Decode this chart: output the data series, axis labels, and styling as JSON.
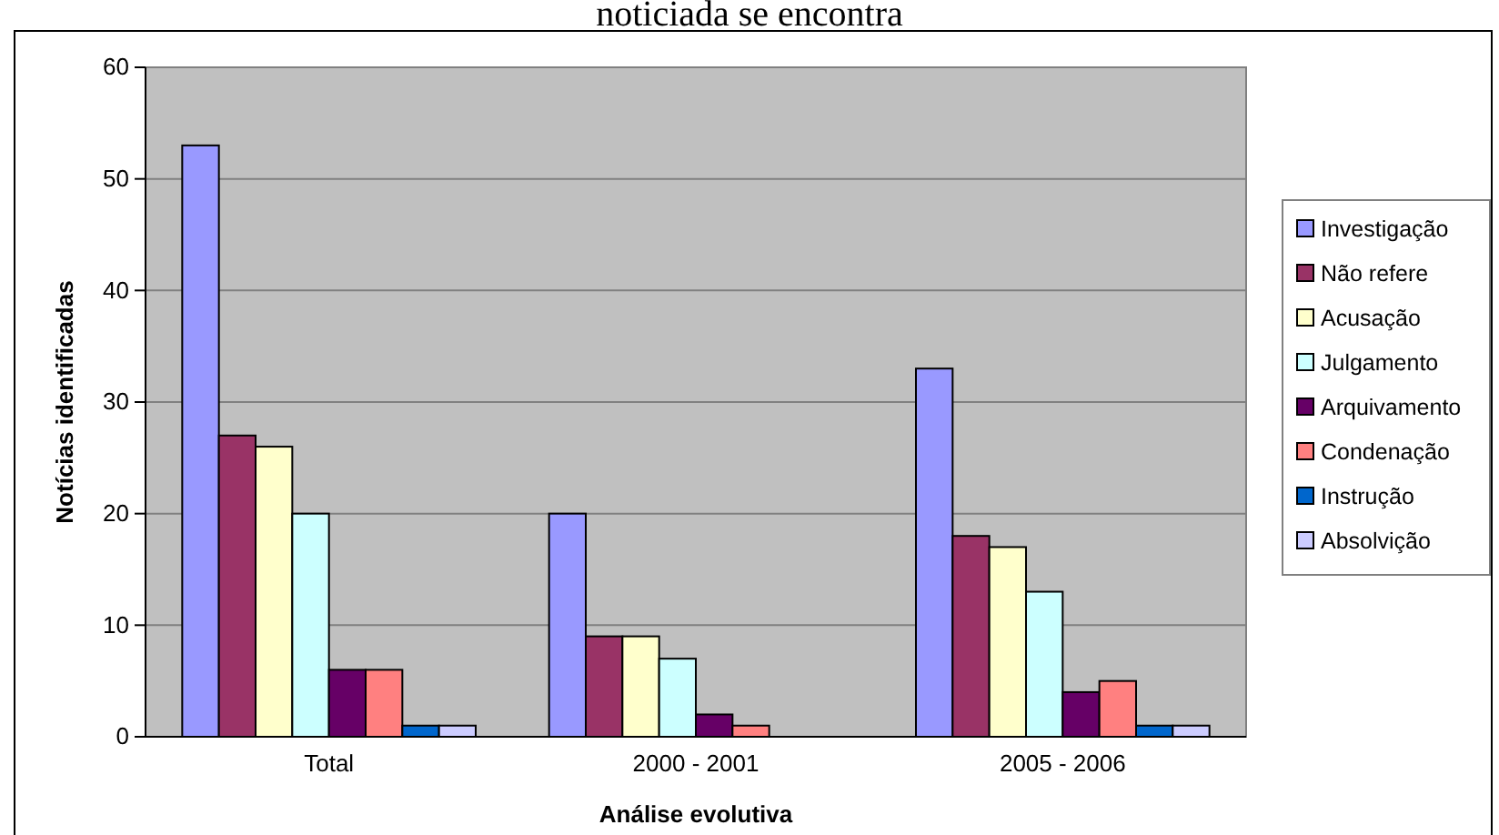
{
  "chart_data": {
    "type": "bar",
    "title": "noticiada se encontra",
    "xlabel": "Análise evolutiva",
    "ylabel": "Notícias identificadas",
    "categories": [
      "Total",
      "2000 - 2001",
      "2005 - 2006"
    ],
    "series": [
      {
        "name": "Investigação",
        "color": "#9999ff",
        "values": [
          53,
          20,
          33
        ]
      },
      {
        "name": "Não refere",
        "color": "#993366",
        "values": [
          27,
          9,
          18
        ]
      },
      {
        "name": "Acusação",
        "color": "#ffffcc",
        "values": [
          26,
          9,
          17
        ]
      },
      {
        "name": "Julgamento",
        "color": "#ccffff",
        "values": [
          20,
          7,
          13
        ]
      },
      {
        "name": "Arquivamento",
        "color": "#660066",
        "values": [
          6,
          2,
          4
        ]
      },
      {
        "name": "Condenação",
        "color": "#ff8080",
        "values": [
          6,
          1,
          5
        ]
      },
      {
        "name": "Instrução",
        "color": "#0066cc",
        "values": [
          1,
          0,
          1
        ]
      },
      {
        "name": "Absolvição",
        "color": "#ccccff",
        "values": [
          1,
          0,
          1
        ]
      }
    ],
    "ylim": [
      0,
      60
    ],
    "yticks": [
      0,
      10,
      20,
      30,
      40,
      50,
      60
    ],
    "grid": "y",
    "legend": "right"
  }
}
